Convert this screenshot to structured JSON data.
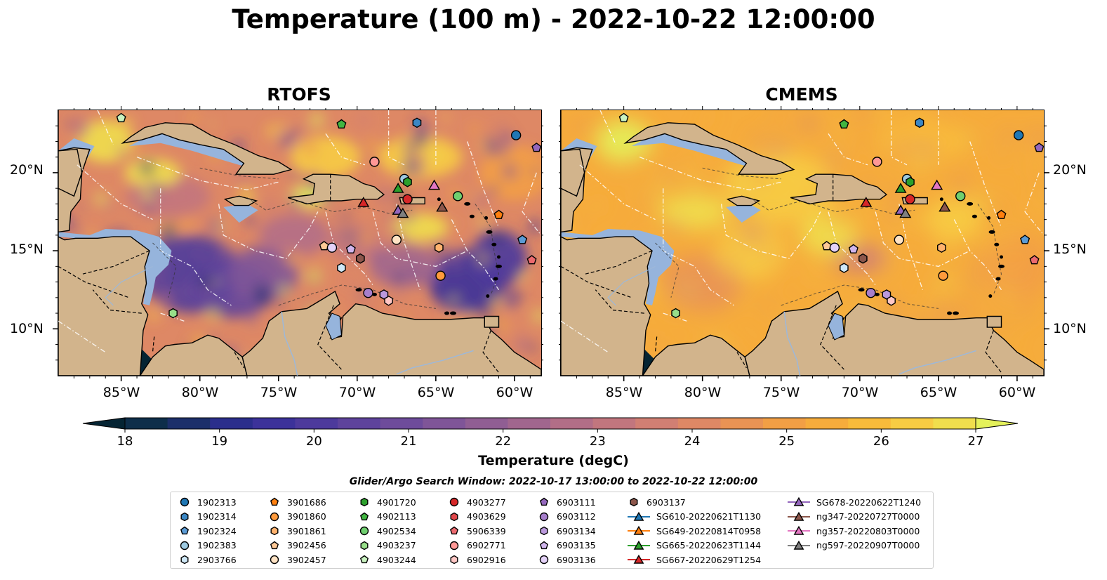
{
  "title": "Temperature (100 m) - 2022-10-22 12:00:00",
  "panels": [
    {
      "title": "RTOFS"
    },
    {
      "title": "CMEMS"
    }
  ],
  "lat_labels": [
    "20°N",
    "15°N",
    "10°N"
  ],
  "lon_labels": [
    "85°W",
    "80°W",
    "75°W",
    "70°W",
    "65°W",
    "60°W"
  ],
  "colorbar": {
    "label": "Temperature (degC)",
    "ticks": [
      "18",
      "19",
      "20",
      "21",
      "22",
      "23",
      "24",
      "25",
      "26",
      "27"
    ],
    "colors": [
      "#052433",
      "#0e2e4a",
      "#1c2f6a",
      "#2b2e8c",
      "#3c329a",
      "#4d3a9c",
      "#5e439c",
      "#6e4c9b",
      "#7f5598",
      "#905e93",
      "#a1668e",
      "#b26e87",
      "#c2767e",
      "#d17f73",
      "#de8865",
      "#e99354",
      "#f29f45",
      "#f6ac3c",
      "#f8bb3b",
      "#f7cc43",
      "#f0de4d",
      "#e4f15a"
    ],
    "extend": "both"
  },
  "legend": {
    "title": "Glider/Argo Search Window: 2022-10-17 13:00:00 to 2022-10-22 12:00:00",
    "items": [
      {
        "label": "1902313",
        "shape": "circle",
        "color": "#1f77b4"
      },
      {
        "label": "1902314",
        "shape": "hexagon",
        "color": "#3b87c4"
      },
      {
        "label": "1902324",
        "shape": "pentagon",
        "color": "#5b9bd5"
      },
      {
        "label": "1902383",
        "shape": "circle",
        "color": "#9ecae1"
      },
      {
        "label": "2903766",
        "shape": "hexagon",
        "color": "#cfe8f7"
      },
      {
        "label": "3901686",
        "shape": "pentagon",
        "color": "#ff7f0e"
      },
      {
        "label": "3901860",
        "shape": "circle",
        "color": "#ff9a3c"
      },
      {
        "label": "3901861",
        "shape": "hexagon",
        "color": "#ffb26e"
      },
      {
        "label": "3902456",
        "shape": "pentagon",
        "color": "#ffc996"
      },
      {
        "label": "3902457",
        "shape": "circle",
        "color": "#ffe3c4"
      },
      {
        "label": "4901720",
        "shape": "hexagon",
        "color": "#2ca02c"
      },
      {
        "label": "4902113",
        "shape": "pentagon",
        "color": "#41b541"
      },
      {
        "label": "4902534",
        "shape": "circle",
        "color": "#6fcf6f"
      },
      {
        "label": "4903237",
        "shape": "hexagon",
        "color": "#98df8a"
      },
      {
        "label": "4903244",
        "shape": "pentagon",
        "color": "#c9f2c0"
      },
      {
        "label": "4903277",
        "shape": "circle",
        "color": "#d62728"
      },
      {
        "label": "4903629",
        "shape": "hexagon",
        "color": "#e0474a"
      },
      {
        "label": "5906339",
        "shape": "pentagon",
        "color": "#ec6a6f"
      },
      {
        "label": "6902771",
        "shape": "circle",
        "color": "#ff9896"
      },
      {
        "label": "6902916",
        "shape": "hexagon",
        "color": "#ffc7c5"
      },
      {
        "label": "6903111",
        "shape": "pentagon",
        "color": "#9467bd"
      },
      {
        "label": "6903112",
        "shape": "circle",
        "color": "#a77fcc"
      },
      {
        "label": "6903134",
        "shape": "hexagon",
        "color": "#bb99dd"
      },
      {
        "label": "6903135",
        "shape": "pentagon",
        "color": "#d0b5ec"
      },
      {
        "label": "6903136",
        "shape": "circle",
        "color": "#e4d2f8"
      },
      {
        "label": "6903137",
        "shape": "hexagon",
        "color": "#8c564b"
      },
      {
        "label": "SG610-20220621T1130",
        "shape": "triangle",
        "color": "#1f77b4"
      },
      {
        "label": "SG649-20220814T0958",
        "shape": "triangle",
        "color": "#ff7f0e"
      },
      {
        "label": "SG665-20220623T1144",
        "shape": "triangle",
        "color": "#2ca02c"
      },
      {
        "label": "SG667-20220629T1254",
        "shape": "triangle",
        "color": "#d62728"
      },
      {
        "label": "SG678-20220622T1240",
        "shape": "triangle",
        "color": "#9467bd"
      },
      {
        "label": "ng347-20220727T0000",
        "shape": "triangle",
        "color": "#8c564b"
      },
      {
        "label": "ng357-20220803T0000",
        "shape": "triangle",
        "color": "#e377c2"
      },
      {
        "label": "ng597-20220907T0000",
        "shape": "triangle",
        "color": "#7f7f7f"
      }
    ]
  },
  "map_data": {
    "extent": {
      "lon": [
        -89,
        -58.3
      ],
      "lat": [
        7,
        24
      ]
    },
    "land_color": "#d2b48c",
    "shelf_color": "#96b4dc",
    "pacific_color": "#052433",
    "markers": [
      {
        "label": "1902313",
        "lon": -59.9,
        "lat": 22.4,
        "shape": "circle",
        "color": "#1f77b4"
      },
      {
        "label": "1902314",
        "lon": -66.2,
        "lat": 23.2,
        "shape": "hexagon",
        "color": "#3b87c4"
      },
      {
        "label": "1902324",
        "lon": -59.5,
        "lat": 15.7,
        "shape": "pentagon",
        "color": "#5b9bd5"
      },
      {
        "label": "1902383",
        "lon": -67.0,
        "lat": 19.6,
        "shape": "circle",
        "color": "#9ecae1"
      },
      {
        "label": "2903766",
        "lon": -71.0,
        "lat": 13.9,
        "shape": "hexagon",
        "color": "#cfe8f7"
      },
      {
        "label": "3901686",
        "lon": -61.0,
        "lat": 17.3,
        "shape": "pentagon",
        "color": "#ff7f0e"
      },
      {
        "label": "3901860",
        "lon": -64.7,
        "lat": 13.4,
        "shape": "circle",
        "color": "#ff9a3c"
      },
      {
        "label": "3901861",
        "lon": -64.8,
        "lat": 15.2,
        "shape": "hexagon",
        "color": "#ffb26e"
      },
      {
        "label": "3902456",
        "lon": -72.1,
        "lat": 15.3,
        "shape": "pentagon",
        "color": "#ffc996"
      },
      {
        "label": "3902457",
        "lon": -67.5,
        "lat": 15.7,
        "shape": "circle",
        "color": "#ffe3c4"
      },
      {
        "label": "4901720",
        "lon": -66.8,
        "lat": 19.4,
        "shape": "hexagon",
        "color": "#2ca02c"
      },
      {
        "label": "4902113",
        "lon": -71.0,
        "lat": 23.1,
        "shape": "pentagon",
        "color": "#41b541"
      },
      {
        "label": "4902534",
        "lon": -63.6,
        "lat": 18.5,
        "shape": "circle",
        "color": "#6fcf6f"
      },
      {
        "label": "4903237",
        "lon": -81.7,
        "lat": 11.0,
        "shape": "hexagon",
        "color": "#98df8a"
      },
      {
        "label": "4903244",
        "lon": -85.0,
        "lat": 23.5,
        "shape": "pentagon",
        "color": "#c9f2c0"
      },
      {
        "label": "4903277",
        "lon": -66.8,
        "lat": 18.3,
        "shape": "circle",
        "color": "#d62728"
      },
      {
        "label": "4903629",
        "lon": -69.8,
        "lat": 14.5,
        "shape": "hexagon",
        "color": "#e0474a"
      },
      {
        "label": "5906339",
        "lon": -58.9,
        "lat": 14.4,
        "shape": "pentagon",
        "color": "#ec6a6f"
      },
      {
        "label": "6902771",
        "lon": -68.9,
        "lat": 20.7,
        "shape": "circle",
        "color": "#ff9896"
      },
      {
        "label": "6902916",
        "lon": -68.0,
        "lat": 11.8,
        "shape": "hexagon",
        "color": "#ffc7c5"
      },
      {
        "label": "6903111",
        "lon": -58.6,
        "lat": 21.6,
        "shape": "pentagon",
        "color": "#9467bd"
      },
      {
        "label": "6903112",
        "lon": -69.3,
        "lat": 12.3,
        "shape": "circle",
        "color": "#a77fcc"
      },
      {
        "label": "6903134",
        "lon": -68.3,
        "lat": 12.2,
        "shape": "hexagon",
        "color": "#bb99dd"
      },
      {
        "label": "6903135",
        "lon": -70.4,
        "lat": 15.1,
        "shape": "pentagon",
        "color": "#d0b5ec"
      },
      {
        "label": "6903136",
        "lon": -71.6,
        "lat": 15.2,
        "shape": "circle",
        "color": "#e4d2f8"
      },
      {
        "label": "6903137",
        "lon": -69.8,
        "lat": 14.5,
        "shape": "hexagon",
        "color": "#8c564b"
      },
      {
        "label": "SG665-20220623T1144",
        "lon": -67.4,
        "lat": 19.0,
        "shape": "triangle",
        "color": "#2ca02c"
      },
      {
        "label": "SG667-20220629T1254",
        "lon": -69.6,
        "lat": 18.1,
        "shape": "triangle",
        "color": "#d62728"
      },
      {
        "label": "SG678-20220622T1240",
        "lon": -67.4,
        "lat": 17.6,
        "shape": "triangle",
        "color": "#9467bd"
      },
      {
        "label": "ng347-20220727T0000",
        "lon": -64.6,
        "lat": 17.8,
        "shape": "triangle",
        "color": "#8c564b"
      },
      {
        "label": "ng357-20220803T0000",
        "lon": -65.1,
        "lat": 19.2,
        "shape": "triangle",
        "color": "#e377c2"
      },
      {
        "label": "ng597-20220907T0000",
        "lon": -67.1,
        "lat": 17.4,
        "shape": "triangle",
        "color": "#7f7f7f"
      }
    ]
  }
}
